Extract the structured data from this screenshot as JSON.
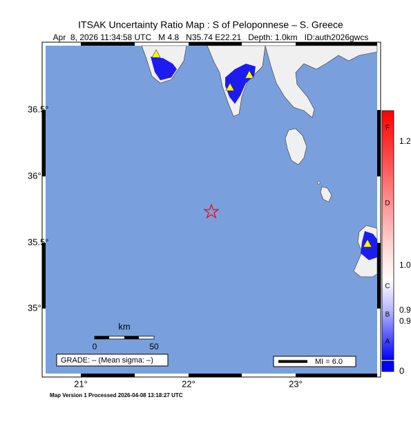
{
  "header": {
    "title": "ITSAK Uncertainty Ratio Map : S of Peloponnese – S. Greece",
    "subtitle": "Apr  8, 2026 11:34:58 UTC   M 4.8   N35.74 E22.21   Depth: 1.0km   ID:auth2026gwcs"
  },
  "map": {
    "lat_labels": [
      "36.5°",
      "36°",
      "35.5°",
      "35°"
    ],
    "lon_labels": [
      "21°",
      "22°",
      "23°"
    ],
    "scale": {
      "unit": "km",
      "labels": [
        "0",
        "50"
      ]
    },
    "grade": "GRADE: – (Mean sigma: –)",
    "legend": "MI = 6.0"
  },
  "colorbar": {
    "labels": [
      "1.2",
      "1.0",
      "0.9",
      "0.9",
      "0"
    ],
    "grades": [
      "F",
      "D",
      "C",
      "B",
      "A"
    ]
  },
  "footer": "Map Version 1 Processed 2026-04-08 13:18:27 UTC"
}
